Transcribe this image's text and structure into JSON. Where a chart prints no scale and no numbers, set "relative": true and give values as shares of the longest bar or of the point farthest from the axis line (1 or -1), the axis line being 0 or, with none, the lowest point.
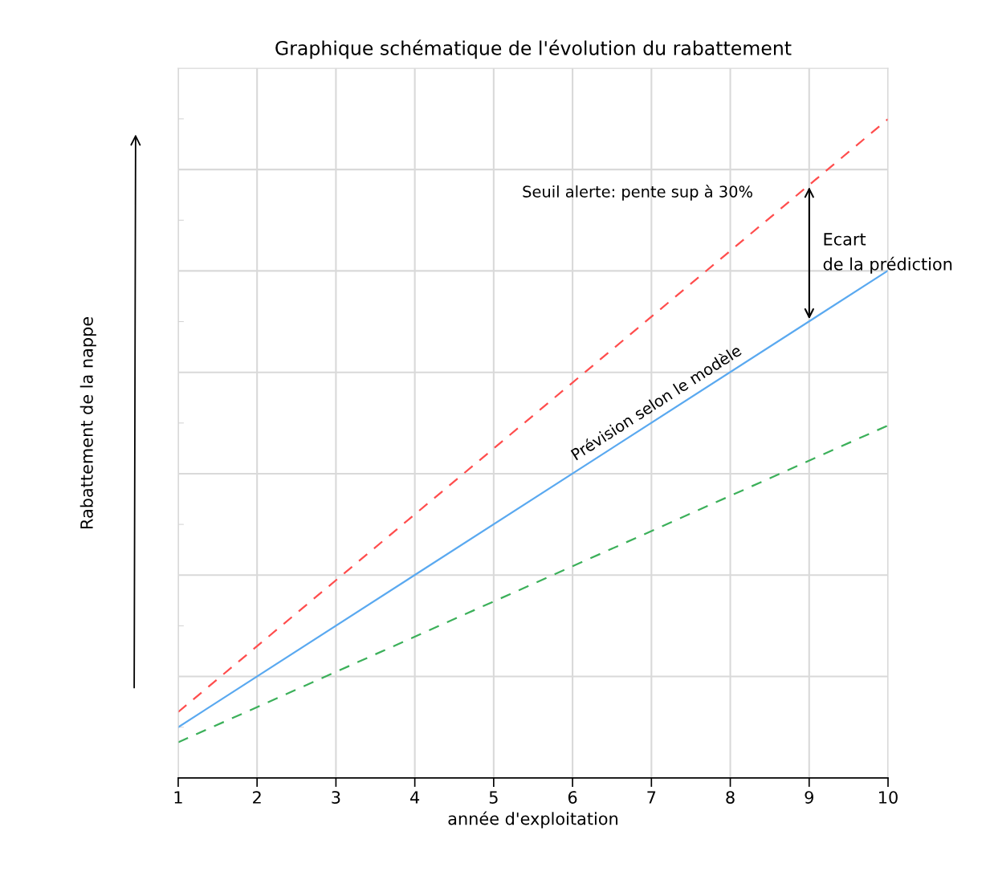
{
  "chart_data": {
    "type": "line",
    "title": "Graphique schématique de l'évolution du rabattement",
    "xlabel": "année d'exploitation",
    "ylabel": "Rabattement de la nappe",
    "relative": true,
    "xlim": [
      1,
      10
    ],
    "xticks": [
      1,
      2,
      3,
      4,
      5,
      6,
      7,
      8,
      9,
      10
    ],
    "grid": true,
    "legend": false,
    "marker": "none",
    "x": [
      1,
      10
    ],
    "series": [
      {
        "name": "Seuil alerte: pente sup à 30%",
        "color": "#ff4d4d",
        "line_style": "dashed",
        "values": [
          0.1,
          1
        ]
      },
      {
        "name": "Prévision selon le modèle",
        "color": "#5aa9f0",
        "line_style": "solid",
        "values": [
          0.077,
          0.77
        ]
      },
      {
        "color": "#3cb05a",
        "line_style": "dashed",
        "values": [
          0.054,
          0.535
        ]
      }
    ],
    "annotations": [
      "Ecart\nde la prédiction"
    ]
  }
}
